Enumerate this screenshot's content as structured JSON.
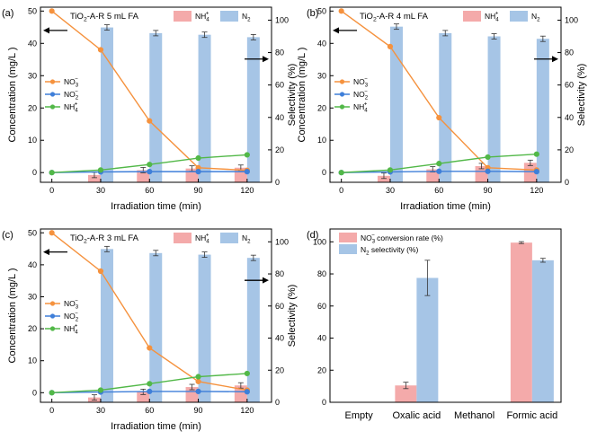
{
  "chart_data": [
    {
      "type": "bar+line",
      "panel": "(a)",
      "title_main": "TiO",
      "title_sub": "2",
      "title_rest": "-A-R 5 mL FA",
      "xlabel": "Irradiation time  (min)",
      "ylabel": "Concentration (mg/L )",
      "y2label": "Selectivity (%)",
      "xticks": [
        "0",
        "30",
        "60",
        "90",
        "120"
      ],
      "ylim": [
        -3,
        51.2
      ],
      "y_ticks": [
        0,
        10,
        20,
        30,
        40,
        50
      ],
      "y2lim": [
        0,
        108
      ],
      "y2_ticks": [
        0,
        20,
        40,
        60,
        80,
        100
      ],
      "bar_categories": [
        30,
        60,
        90,
        120
      ],
      "bar_series": [
        {
          "name": "NH4+",
          "label_main": "NH",
          "label_sub": "4",
          "label_sup": "+",
          "color": "#f4aaaa",
          "values": [
            4.5,
            7.5,
            8.5,
            9.0
          ]
        },
        {
          "name": "N2",
          "label_main": "N",
          "label_sub": "2",
          "label_sup": "",
          "color": "#a6c5e6",
          "values": [
            95.5,
            92.0,
            91.0,
            89.5
          ]
        }
      ],
      "line_x": [
        0,
        30,
        60,
        90,
        120
      ],
      "line_series": [
        {
          "name": "NO3-",
          "label_main": "NO",
          "label_sub": "3",
          "label_sup": "−",
          "color": "#f5923e",
          "values": [
            50,
            38,
            16,
            1.5,
            0.7
          ]
        },
        {
          "name": "NO2-",
          "label_main": "NO",
          "label_sub": "2",
          "label_sup": "−",
          "color": "#3f7fd9",
          "values": [
            0,
            0.2,
            0.3,
            0.3,
            0.3
          ]
        },
        {
          "name": "NH4+",
          "label_main": "NH",
          "label_sub": "4",
          "label_sup": "+",
          "color": "#52b848",
          "values": [
            0,
            0.8,
            2.5,
            4.5,
            5.5
          ]
        }
      ]
    },
    {
      "type": "bar+line",
      "panel": "(b)",
      "title_main": "TiO",
      "title_sub": "2",
      "title_rest": "-A-R 4 mL FA",
      "xlabel": "Irradiation time  (min)",
      "ylabel": "Concentration (mg/L )",
      "y2label": "Selectivity (%)",
      "xticks": [
        "0",
        "30",
        "60",
        "90",
        "120"
      ],
      "ylim": [
        -3,
        51.2
      ],
      "y_ticks": [
        0,
        10,
        20,
        30,
        40,
        50
      ],
      "y2lim": [
        0,
        108
      ],
      "y2_ticks": [
        0,
        20,
        40,
        60,
        80,
        100
      ],
      "bar_categories": [
        30,
        60,
        90,
        120
      ],
      "bar_series": [
        {
          "name": "NH4+",
          "label_main": "NH",
          "label_sub": "4",
          "label_sup": "+",
          "color": "#f4aaaa",
          "values": [
            4.0,
            8.0,
            10.0,
            12.0
          ]
        },
        {
          "name": "N2",
          "label_main": "N",
          "label_sub": "2",
          "label_sup": "",
          "color": "#a6c5e6",
          "values": [
            96.0,
            92.0,
            90.0,
            88.5
          ]
        }
      ],
      "line_x": [
        0,
        30,
        60,
        90,
        120
      ],
      "line_series": [
        {
          "name": "NO3-",
          "label_main": "NO",
          "label_sub": "3",
          "label_sup": "−",
          "color": "#f5923e",
          "values": [
            50,
            39,
            17,
            1.5,
            0.8
          ]
        },
        {
          "name": "NO2-",
          "label_main": "NO",
          "label_sub": "2",
          "label_sup": "−",
          "color": "#3f7fd9",
          "values": [
            0,
            0.2,
            0.4,
            0.4,
            0.3
          ]
        },
        {
          "name": "NH4+",
          "label_main": "NH",
          "label_sub": "4",
          "label_sup": "+",
          "color": "#52b848",
          "values": [
            0,
            0.8,
            2.8,
            4.8,
            5.7
          ]
        }
      ]
    },
    {
      "type": "bar+line",
      "panel": "(c)",
      "title_main": "TiO",
      "title_sub": "2",
      "title_rest": "-A-R 3 mL FA",
      "xlabel": "Irradiation time  (min)",
      "ylabel": "Concentration (mg/L )",
      "y2label": "Selectivity (%)",
      "xticks": [
        "0",
        "30",
        "60",
        "90",
        "120"
      ],
      "ylim": [
        -3,
        51.2
      ],
      "y_ticks": [
        0,
        10,
        20,
        30,
        40,
        50
      ],
      "y2lim": [
        0,
        108
      ],
      "y2_ticks": [
        0,
        20,
        40,
        60,
        80,
        100
      ],
      "bar_categories": [
        30,
        60,
        90,
        120
      ],
      "bar_series": [
        {
          "name": "NH4+",
          "label_main": "NH",
          "label_sub": "4",
          "label_sup": "+",
          "color": "#f4aaaa",
          "values": [
            3.0,
            6.5,
            9.5,
            10.5
          ]
        },
        {
          "name": "N2",
          "label_main": "N",
          "label_sub": "2",
          "label_sup": "",
          "color": "#a6c5e6",
          "values": [
            95.5,
            93.0,
            92.0,
            90.0
          ]
        }
      ],
      "line_x": [
        0,
        30,
        60,
        90,
        120
      ],
      "line_series": [
        {
          "name": "NO3-",
          "label_main": "NO",
          "label_sub": "3",
          "label_sup": "−",
          "color": "#f5923e",
          "values": [
            50,
            38,
            14,
            3.5,
            0.8
          ]
        },
        {
          "name": "NO2-",
          "label_main": "NO",
          "label_sub": "2",
          "label_sup": "−",
          "color": "#3f7fd9",
          "values": [
            0,
            0.2,
            0.4,
            0.4,
            0.3
          ]
        },
        {
          "name": "NH4+",
          "label_main": "NH",
          "label_sub": "4",
          "label_sup": "+",
          "color": "#52b848",
          "values": [
            0,
            0.8,
            2.8,
            5.0,
            6.0
          ]
        }
      ]
    },
    {
      "type": "bar",
      "panel": "(d)",
      "categories": [
        "Empty",
        "Oxalic acid",
        "Methanol",
        "Formic acid"
      ],
      "ylim": [
        0,
        108
      ],
      "y_ticks": [
        0,
        20,
        40,
        60,
        80,
        100
      ],
      "series": [
        {
          "name": "NO3- conversion rate (%)",
          "label_main": "NO",
          "label_sub": "3",
          "label_sup": "−",
          "label_rest": " conversion rate (%)",
          "color": "#f4aaaa",
          "values": [
            0,
            10.5,
            0,
            99.5
          ]
        },
        {
          "name": "N2 selectivity (%)",
          "label_main": "N",
          "label_sub": "2",
          "label_sup": "",
          "label_rest": " selectivity (%)",
          "color": "#a6c5e6",
          "values": [
            0,
            77.5,
            0,
            88.5
          ]
        }
      ]
    }
  ]
}
